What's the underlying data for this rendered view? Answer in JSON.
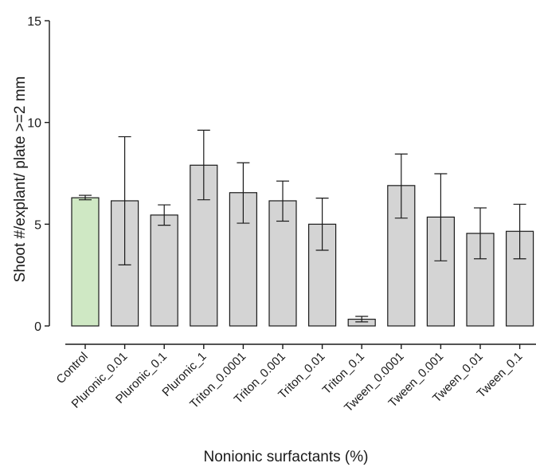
{
  "chart_data": {
    "type": "bar",
    "title": "",
    "xlabel": "Nonionic surfactants (%)",
    "ylabel": "Shoot #/explant/ plate >=2 mm",
    "ylim": [
      0,
      15
    ],
    "yticks": [
      0,
      5,
      10,
      15
    ],
    "grid": false,
    "legend": "none",
    "categories": [
      "Control",
      "Pluronic_0.01",
      "Pluronic_0.1",
      "Pluronic_1",
      "Triton_0.0001",
      "Triton_0.001",
      "Triton_0.01",
      "Triton_0.1",
      "Tween_0.0001",
      "Tween_0.001",
      "Tween_0.01",
      "Tween_0.1"
    ],
    "values": [
      6.3,
      6.15,
      5.45,
      7.9,
      6.55,
      6.15,
      5.0,
      0.33,
      6.9,
      5.35,
      4.55,
      4.65
    ],
    "error_low": [
      6.2,
      3.0,
      4.95,
      6.2,
      5.05,
      5.15,
      3.72,
      0.2,
      5.3,
      3.2,
      3.3,
      3.3
    ],
    "error_high": [
      6.42,
      9.3,
      5.95,
      9.62,
      8.02,
      7.12,
      6.28,
      0.47,
      8.45,
      7.48,
      5.8,
      5.98
    ],
    "colors": {
      "control_fill": "#cfe8c4",
      "bar_fill": "#d4d4d4",
      "stroke": "#1a1a1a"
    }
  }
}
